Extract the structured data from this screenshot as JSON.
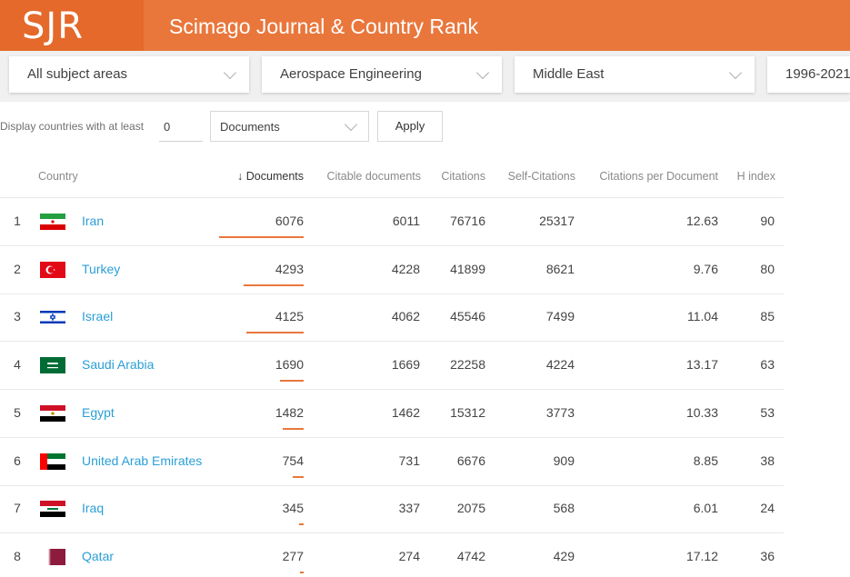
{
  "header": {
    "logo": "SJR",
    "title": "Scimago Journal & Country Rank"
  },
  "filters": {
    "subject_area": "All subject areas",
    "subject_category": "Aerospace Engineering",
    "region": "Middle East",
    "years": "1996-2021"
  },
  "threshold": {
    "label": "Display countries with at least",
    "value": "0",
    "metric": "Documents",
    "apply_label": "Apply"
  },
  "table": {
    "columns": {
      "country": "Country",
      "documents": "↓ Documents",
      "citable": "Citable documents",
      "citations": "Citations",
      "self_citations": "Self-Citations",
      "cpd": "Citations per Document",
      "h_index": "H index"
    },
    "max_documents": 6076,
    "rows": [
      {
        "rank": "1",
        "country": "Iran",
        "flag": "iran-flag-icon",
        "documents": "6076",
        "citable": "6011",
        "citations": "76716",
        "self_citations": "25317",
        "cpd": "12.63",
        "h_index": "90",
        "doc_value": 6076
      },
      {
        "rank": "2",
        "country": "Turkey",
        "flag": "turkey-flag-icon",
        "documents": "4293",
        "citable": "4228",
        "citations": "41899",
        "self_citations": "8621",
        "cpd": "9.76",
        "h_index": "80",
        "doc_value": 4293
      },
      {
        "rank": "3",
        "country": "Israel",
        "flag": "israel-flag-icon",
        "documents": "4125",
        "citable": "4062",
        "citations": "45546",
        "self_citations": "7499",
        "cpd": "11.04",
        "h_index": "85",
        "doc_value": 4125
      },
      {
        "rank": "4",
        "country": "Saudi Arabia",
        "flag": "saudi-arabia-flag-icon",
        "documents": "1690",
        "citable": "1669",
        "citations": "22258",
        "self_citations": "4224",
        "cpd": "13.17",
        "h_index": "63",
        "doc_value": 1690
      },
      {
        "rank": "5",
        "country": "Egypt",
        "flag": "egypt-flag-icon",
        "documents": "1482",
        "citable": "1462",
        "citations": "15312",
        "self_citations": "3773",
        "cpd": "10.33",
        "h_index": "53",
        "doc_value": 1482
      },
      {
        "rank": "6",
        "country": "United Arab Emirates",
        "flag": "uae-flag-icon",
        "documents": "754",
        "citable": "731",
        "citations": "6676",
        "self_citations": "909",
        "cpd": "8.85",
        "h_index": "38",
        "doc_value": 754
      },
      {
        "rank": "7",
        "country": "Iraq",
        "flag": "iraq-flag-icon",
        "documents": "345",
        "citable": "337",
        "citations": "2075",
        "self_citations": "568",
        "cpd": "6.01",
        "h_index": "24",
        "doc_value": 345
      },
      {
        "rank": "8",
        "country": "Qatar",
        "flag": "qatar-flag-icon",
        "documents": "277",
        "citable": "274",
        "citations": "4742",
        "self_citations": "429",
        "cpd": "17.12",
        "h_index": "36",
        "doc_value": 277
      }
    ]
  },
  "colors": {
    "brand": "#e9773c",
    "brand_dark": "#e4692a",
    "link": "#2a9fd6"
  }
}
